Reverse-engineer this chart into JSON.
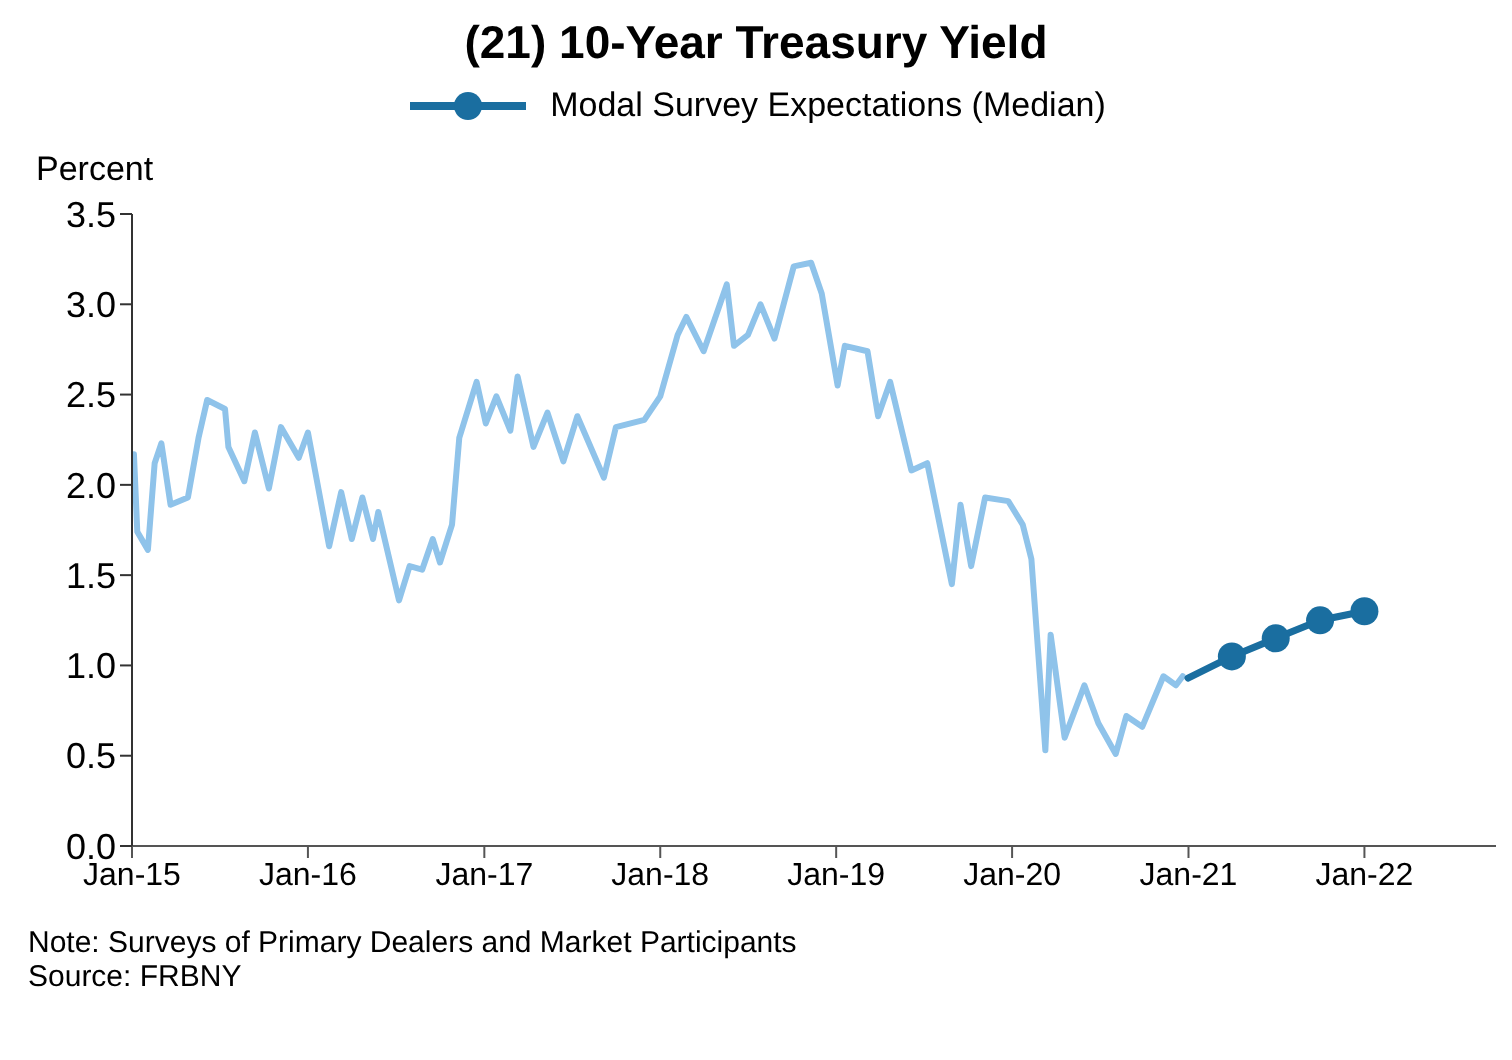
{
  "chart_data": {
    "type": "line",
    "title": "(21) 10-Year Treasury Yield",
    "ylabel": "Percent",
    "series": [
      {
        "color": "#8fc3ea",
        "x": [
          "2015-01-05",
          "2015-01-12",
          "2015-02-03",
          "2015-02-17",
          "2015-03-03",
          "2015-03-22",
          "2015-04-27",
          "2015-05-19",
          "2015-06-06",
          "2015-07-13",
          "2015-07-20",
          "2015-08-22",
          "2015-09-13",
          "2015-10-12",
          "2015-11-06",
          "2015-12-13",
          "2016-01-01",
          "2016-02-14",
          "2016-03-10",
          "2016-04-01",
          "2016-04-23",
          "2016-05-15",
          "2016-05-26",
          "2016-07-08",
          "2016-07-30",
          "2016-08-25",
          "2016-09-16",
          "2016-10-01",
          "2016-10-26",
          "2016-11-10",
          "2016-12-16",
          "2017-01-04",
          "2017-01-26",
          "2017-02-24",
          "2017-03-11",
          "2017-04-13",
          "2017-05-12",
          "2017-06-14",
          "2017-07-13",
          "2017-09-06",
          "2017-10-01",
          "2017-11-29",
          "2018-01-01",
          "2018-02-06",
          "2018-02-24",
          "2018-04-01",
          "2018-05-19",
          "2018-06-03",
          "2018-07-02",
          "2018-07-28",
          "2018-08-26",
          "2018-10-05",
          "2018-11-10",
          "2018-12-02",
          "2019-01-04",
          "2019-01-19",
          "2019-03-07",
          "2019-03-29",
          "2019-04-23",
          "2019-06-06",
          "2019-07-09",
          "2019-08-29",
          "2019-09-16",
          "2019-10-08",
          "2019-11-06",
          "2019-12-24",
          "2020-01-23",
          "2020-02-10",
          "2020-03-10",
          "2020-03-21",
          "2020-04-19",
          "2020-05-30",
          "2020-06-28",
          "2020-08-03",
          "2020-08-25",
          "2020-09-27",
          "2020-11-10",
          "2020-12-06",
          "2020-12-20"
        ],
        "values": [
          2.17,
          1.74,
          1.64,
          2.12,
          2.23,
          1.89,
          1.93,
          2.26,
          2.47,
          2.42,
          2.21,
          2.02,
          2.29,
          1.98,
          2.32,
          2.15,
          2.29,
          1.66,
          1.96,
          1.7,
          1.93,
          1.7,
          1.85,
          1.36,
          1.55,
          1.53,
          1.7,
          1.57,
          1.78,
          2.26,
          2.57,
          2.34,
          2.49,
          2.3,
          2.6,
          2.21,
          2.4,
          2.13,
          2.38,
          2.04,
          2.32,
          2.36,
          2.49,
          2.83,
          2.93,
          2.74,
          3.11,
          2.77,
          2.83,
          3.0,
          2.81,
          3.21,
          3.23,
          3.06,
          2.55,
          2.77,
          2.74,
          2.38,
          2.57,
          2.08,
          2.12,
          1.45,
          1.89,
          1.55,
          1.93,
          1.91,
          1.78,
          1.59,
          0.53,
          1.17,
          0.6,
          0.89,
          0.68,
          0.51,
          0.72,
          0.66,
          0.94,
          0.89,
          0.94
        ]
      },
      {
        "name": "Modal Survey Expectations (Median)",
        "color": "#1a6ea0",
        "marker": "circle",
        "x": [
          "2020-12-31",
          "2021-04-01",
          "2021-07-01",
          "2021-10-01",
          "2022-01-01"
        ],
        "values": [
          0.93,
          1.05,
          1.15,
          1.25,
          1.3
        ]
      }
    ],
    "xlim": [
      "2015-01-01",
      "2022-10-01"
    ],
    "xticks": [
      {
        "value": "2015-01-01",
        "label": "Jan-15"
      },
      {
        "value": "2016-01-01",
        "label": "Jan-16"
      },
      {
        "value": "2017-01-01",
        "label": "Jan-17"
      },
      {
        "value": "2018-01-01",
        "label": "Jan-18"
      },
      {
        "value": "2019-01-01",
        "label": "Jan-19"
      },
      {
        "value": "2020-01-01",
        "label": "Jan-20"
      },
      {
        "value": "2021-01-01",
        "label": "Jan-21"
      },
      {
        "value": "2022-01-01",
        "label": "Jan-22"
      }
    ],
    "ylim": [
      0,
      3.5
    ],
    "yticks": [
      {
        "value": 0,
        "label": "0.0"
      },
      {
        "value": 0.5,
        "label": "0.5"
      },
      {
        "value": 1,
        "label": "1.0"
      },
      {
        "value": 1.5,
        "label": "1.5"
      },
      {
        "value": 2,
        "label": "2.0"
      },
      {
        "value": 2.5,
        "label": "2.5"
      },
      {
        "value": 3,
        "label": "3.0"
      },
      {
        "value": 3.5,
        "label": "3.5"
      }
    ],
    "grid": false,
    "legend": "top",
    "line_style": "solid",
    "annotations": [
      "Note: Surveys of Primary Dealers and Market Participants",
      "Source: FRBNY"
    ]
  }
}
